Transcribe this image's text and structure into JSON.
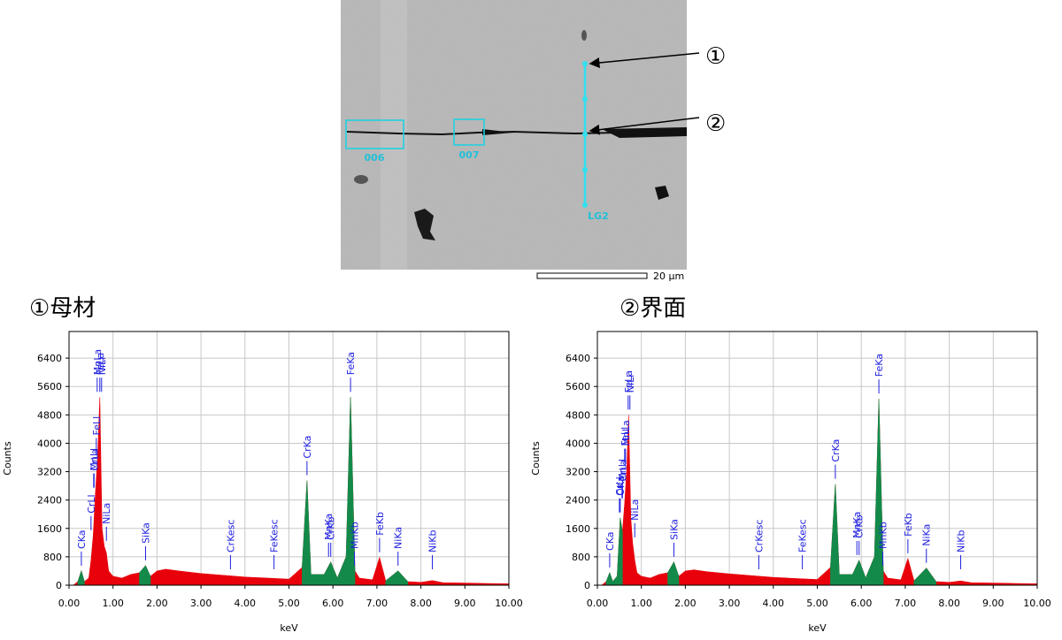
{
  "image": {
    "region_labels": [
      "006",
      "007"
    ],
    "line_label": "LG2",
    "scale_bar": "20 µm",
    "markers": [
      "①",
      "②"
    ]
  },
  "headings": [
    "①母材",
    "②界面"
  ],
  "chart_data": [
    {
      "type": "area",
      "xlabel": "keV",
      "ylabel": "Counts",
      "grid": true,
      "xlim": [
        0,
        10
      ],
      "ylim": [
        0,
        7150
      ],
      "xticks": [
        {
          "value": 0,
          "label": "0.00"
        },
        {
          "value": 1,
          "label": "1.00"
        },
        {
          "value": 2,
          "label": "2.00"
        },
        {
          "value": 3,
          "label": "3.00"
        },
        {
          "value": 4,
          "label": "4.00"
        },
        {
          "value": 5,
          "label": "5.00"
        },
        {
          "value": 6,
          "label": "6.00"
        },
        {
          "value": 7,
          "label": "7.00"
        },
        {
          "value": 8,
          "label": "8.00"
        },
        {
          "value": 9,
          "label": "9.00"
        },
        {
          "value": 10,
          "label": "10.00"
        }
      ],
      "yticks": [
        0,
        800,
        1600,
        2400,
        3200,
        4000,
        4800,
        5600,
        6400
      ],
      "x": [
        0.0,
        0.1,
        0.2,
        0.28,
        0.35,
        0.45,
        0.5,
        0.55,
        0.6,
        0.65,
        0.7,
        0.75,
        0.8,
        0.85,
        0.9,
        1.0,
        1.2,
        1.4,
        1.6,
        1.74,
        1.85,
        2.0,
        2.2,
        2.5,
        3.0,
        3.5,
        4.0,
        4.5,
        5.0,
        5.3,
        5.41,
        5.5,
        5.8,
        5.95,
        6.1,
        6.3,
        6.4,
        6.5,
        6.6,
        6.9,
        7.06,
        7.2,
        7.48,
        7.7,
        8.0,
        8.26,
        8.5,
        9.0,
        9.5,
        10.0
      ],
      "series": [
        {
          "color": "#e8000b",
          "values": [
            0,
            0,
            100,
            400,
            100,
            200,
            700,
            1400,
            2600,
            3600,
            5300,
            1600,
            1100,
            900,
            400,
            250,
            200,
            300,
            350,
            550,
            250,
            400,
            450,
            400,
            330,
            280,
            230,
            200,
            170,
            500,
            2950,
            300,
            300,
            650,
            200,
            800,
            5300,
            400,
            200,
            150,
            780,
            120,
            400,
            100,
            80,
            130,
            70,
            60,
            50,
            40
          ]
        },
        {
          "color": "#138a4a",
          "values": [
            null,
            null,
            100,
            400,
            100,
            null,
            null,
            null,
            null,
            null,
            null,
            null,
            null,
            null,
            null,
            null,
            null,
            null,
            350,
            550,
            250,
            null,
            null,
            null,
            null,
            null,
            null,
            null,
            null,
            500,
            2950,
            300,
            300,
            650,
            200,
            800,
            5300,
            400,
            null,
            null,
            null,
            120,
            400,
            100,
            null,
            null,
            null,
            null,
            null,
            null
          ]
        }
      ],
      "peak_labels": [
        {
          "label": "CKa",
          "x": 0.28
        },
        {
          "label": "CrLl",
          "x": 0.5
        },
        {
          "label": "CrLa",
          "x": 0.57
        },
        {
          "label": "MnLl",
          "x": 0.56
        },
        {
          "label": "MnLa",
          "x": 0.64
        },
        {
          "label": "FeLl",
          "x": 0.62
        },
        {
          "label": "FeLa",
          "x": 0.7
        },
        {
          "label": "NiLl",
          "x": 0.74
        },
        {
          "label": "NiLa",
          "x": 0.85
        },
        {
          "label": "SiKa",
          "x": 1.74
        },
        {
          "label": "CrKesc",
          "x": 3.67
        },
        {
          "label": "FeKesc",
          "x": 4.66
        },
        {
          "label": "CrKa",
          "x": 5.41
        },
        {
          "label": "CrKb",
          "x": 5.95
        },
        {
          "label": "MnKa",
          "x": 5.9
        },
        {
          "label": "MnKb",
          "x": 6.49
        },
        {
          "label": "FeKa",
          "x": 6.4
        },
        {
          "label": "FeKb",
          "x": 7.06
        },
        {
          "label": "NiKa",
          "x": 7.48
        },
        {
          "label": "NiKb",
          "x": 8.26
        }
      ]
    },
    {
      "type": "area",
      "xlabel": "keV",
      "ylabel": "Counts",
      "grid": true,
      "xlim": [
        0,
        10
      ],
      "ylim": [
        0,
        7150
      ],
      "xticks": [
        {
          "value": 0,
          "label": "0.00"
        },
        {
          "value": 1,
          "label": "1.00"
        },
        {
          "value": 2,
          "label": "2.00"
        },
        {
          "value": 3,
          "label": "3.00"
        },
        {
          "value": 4,
          "label": "4.00"
        },
        {
          "value": 5,
          "label": "5.00"
        },
        {
          "value": 6,
          "label": "6.00"
        },
        {
          "value": 7,
          "label": "7.00"
        },
        {
          "value": 8,
          "label": "8.00"
        },
        {
          "value": 9,
          "label": "9.00"
        },
        {
          "value": 10,
          "label": "10.00"
        }
      ],
      "yticks": [
        0,
        800,
        1600,
        2400,
        3200,
        4000,
        4800,
        5600,
        6400
      ],
      "x": [
        0.0,
        0.1,
        0.2,
        0.28,
        0.35,
        0.45,
        0.52,
        0.57,
        0.62,
        0.67,
        0.71,
        0.76,
        0.8,
        0.85,
        0.9,
        1.0,
        1.2,
        1.4,
        1.6,
        1.74,
        1.85,
        2.0,
        2.2,
        2.5,
        3.0,
        3.5,
        4.0,
        4.5,
        5.0,
        5.3,
        5.41,
        5.5,
        5.8,
        5.95,
        6.1,
        6.3,
        6.4,
        6.5,
        6.6,
        6.9,
        7.06,
        7.2,
        7.48,
        7.7,
        8.0,
        8.26,
        8.5,
        9.0,
        9.5,
        10.0
      ],
      "series": [
        {
          "color": "#e8000b",
          "values": [
            0,
            0,
            100,
            350,
            100,
            250,
            1900,
            1500,
            2300,
            3300,
            4800,
            1900,
            1200,
            700,
            350,
            250,
            200,
            300,
            350,
            650,
            250,
            400,
            430,
            380,
            320,
            270,
            220,
            190,
            160,
            500,
            2850,
            300,
            300,
            700,
            200,
            800,
            5250,
            400,
            200,
            150,
            750,
            120,
            480,
            100,
            80,
            120,
            70,
            60,
            50,
            40
          ]
        },
        {
          "color": "#138a4a",
          "values": [
            null,
            null,
            100,
            350,
            100,
            250,
            1900,
            1500,
            null,
            null,
            null,
            null,
            null,
            null,
            null,
            null,
            null,
            null,
            350,
            650,
            250,
            null,
            null,
            null,
            null,
            null,
            null,
            null,
            null,
            500,
            2850,
            300,
            300,
            700,
            200,
            800,
            5250,
            400,
            null,
            null,
            null,
            120,
            480,
            100,
            null,
            null,
            null,
            null,
            null,
            null
          ]
        }
      ],
      "peak_labels": [
        {
          "label": "CKa",
          "x": 0.28
        },
        {
          "label": "OKa",
          "x": 0.52
        },
        {
          "label": "CrLl",
          "x": 0.5
        },
        {
          "label": "CrLa",
          "x": 0.57
        },
        {
          "label": "MnLl",
          "x": 0.56
        },
        {
          "label": "FeLl",
          "x": 0.62
        },
        {
          "label": "MnLa",
          "x": 0.64
        },
        {
          "label": "FeLa",
          "x": 0.7
        },
        {
          "label": "NiLl",
          "x": 0.74
        },
        {
          "label": "NiLa",
          "x": 0.85
        },
        {
          "label": "SiKa",
          "x": 1.74
        },
        {
          "label": "CrKesc",
          "x": 3.67
        },
        {
          "label": "FeKesc",
          "x": 4.66
        },
        {
          "label": "CrKa",
          "x": 5.41
        },
        {
          "label": "CrKb",
          "x": 5.95
        },
        {
          "label": "MnKa",
          "x": 5.9
        },
        {
          "label": "MnKb",
          "x": 6.49
        },
        {
          "label": "FeKa",
          "x": 6.4
        },
        {
          "label": "FeKb",
          "x": 7.06
        },
        {
          "label": "NiKa",
          "x": 7.48
        },
        {
          "label": "NiKb",
          "x": 8.26
        }
      ]
    }
  ]
}
